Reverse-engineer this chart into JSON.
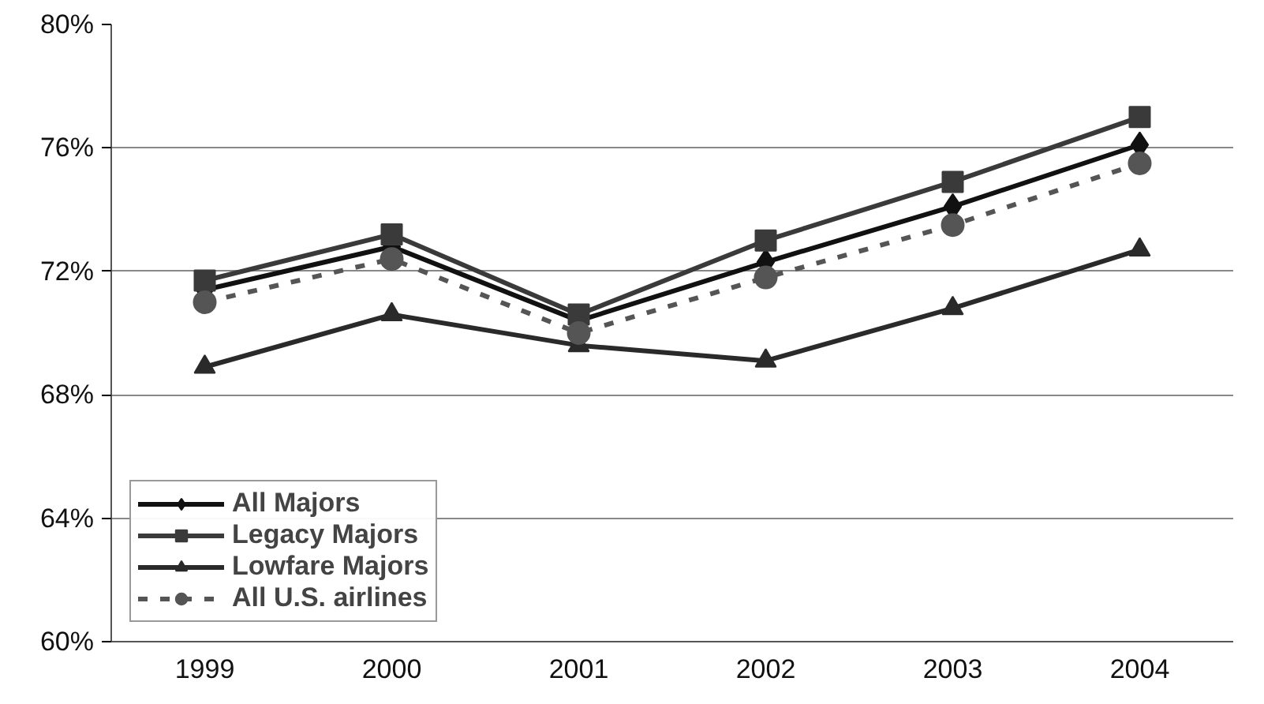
{
  "chart_data": {
    "type": "line",
    "categories": [
      "1999",
      "2000",
      "2001",
      "2002",
      "2003",
      "2004"
    ],
    "series": [
      {
        "name": "All Majors",
        "color": "#111111",
        "marker": "diamond",
        "line_style": "solid",
        "values": [
          71.4,
          72.8,
          70.4,
          72.3,
          74.1,
          76.1
        ]
      },
      {
        "name": "Legacy Majors",
        "color": "#3a3a3a",
        "marker": "square",
        "line_style": "solid",
        "values": [
          71.7,
          73.2,
          70.6,
          73.0,
          74.9,
          77.0
        ]
      },
      {
        "name": "Lowfare Majors",
        "color": "#2a2a2a",
        "marker": "triangle",
        "line_style": "solid",
        "values": [
          68.9,
          70.6,
          69.6,
          69.1,
          70.8,
          72.7
        ]
      },
      {
        "name": "All U.S. airlines",
        "color": "#555555",
        "marker": "circle",
        "line_style": "dashed",
        "values": [
          71.0,
          72.4,
          70.0,
          71.8,
          73.5,
          75.5
        ]
      }
    ],
    "ylim": [
      60,
      80
    ],
    "yticks": [
      {
        "value": 60,
        "label": "60%"
      },
      {
        "value": 64,
        "label": "64%"
      },
      {
        "value": 68,
        "label": "68%"
      },
      {
        "value": 72,
        "label": "72%"
      },
      {
        "value": 76,
        "label": "76%"
      },
      {
        "value": 80,
        "label": "80%"
      }
    ],
    "grid": "y",
    "legend": "bottom left"
  }
}
